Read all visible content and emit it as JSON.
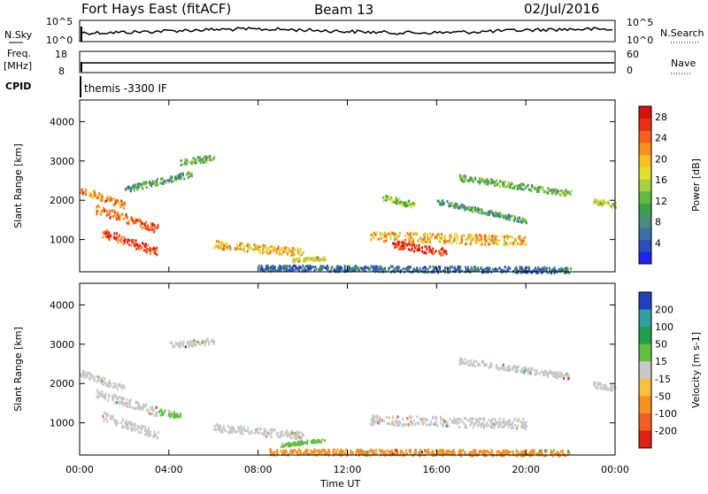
{
  "header": {
    "station": "Fort Hays East (fitACF)",
    "beam": "Beam 13",
    "date": "02/Jul/2016"
  },
  "top_panels": {
    "nsky_label": "N.Sky",
    "nsky_ticks": [
      "10^5",
      "10^0"
    ],
    "nsearch_label": "N.Search",
    "nsearch_ticks": [
      "10^5",
      "10^0"
    ],
    "freq_label": "Freq.",
    "freq_unit": "[MHz]",
    "freq_ticks": [
      "18",
      "8"
    ],
    "nave_label": "Nave",
    "nave_ticks": [
      "60",
      "0"
    ],
    "cpid_label": "CPID",
    "cpid_value": "themis -3300 IF"
  },
  "chart_data": [
    {
      "type": "heatmap",
      "panel": "power",
      "ylabel": "Slant Range [km]",
      "x_ticks": [
        "00:00",
        "04:00",
        "08:00",
        "12:00",
        "16:00",
        "20:00",
        "00:00"
      ],
      "x_range_hours": [
        0,
        24
      ],
      "y_ticks": [
        1000,
        2000,
        3000,
        4000
      ],
      "y_range_km": [
        180,
        4550
      ],
      "colorbar_label": "Power [dB]",
      "colorbar_ticks": [
        4,
        8,
        12,
        16,
        20,
        24,
        28
      ],
      "colorbar_colors": [
        "#1f22f0",
        "#2a4fb8",
        "#3a6fa8",
        "#4a8a80",
        "#3aa04a",
        "#60b840",
        "#a8d040",
        "#e0e030",
        "#f8c020",
        "#f89020",
        "#f86020",
        "#e83018",
        "#d81010"
      ],
      "colorbar_range": [
        0,
        30
      ],
      "scatter_bands": [
        {
          "t": [
            0.0,
            2.0
          ],
          "r": [
            2300,
            1900
          ],
          "width": 180,
          "level": 22
        },
        {
          "t": [
            0.7,
            3.5
          ],
          "r": [
            1800,
            1300
          ],
          "width": 220,
          "level": 24
        },
        {
          "t": [
            1.0,
            3.5
          ],
          "r": [
            1200,
            700
          ],
          "width": 220,
          "level": 26
        },
        {
          "t": [
            2.0,
            5.0
          ],
          "r": [
            2300,
            2700
          ],
          "width": 150,
          "level": 10
        },
        {
          "t": [
            4.5,
            6.0
          ],
          "r": [
            3000,
            3100
          ],
          "width": 150,
          "level": 12
        },
        {
          "t": [
            6.0,
            10.0
          ],
          "r": [
            900,
            700
          ],
          "width": 200,
          "level": 20
        },
        {
          "t": [
            9.5,
            11.0
          ],
          "r": [
            500,
            550
          ],
          "width": 80,
          "level": 18
        },
        {
          "t": [
            13.0,
            20.0
          ],
          "r": [
            1100,
            1000
          ],
          "width": 250,
          "level": 20
        },
        {
          "t": [
            14.0,
            16.5
          ],
          "r": [
            900,
            700
          ],
          "width": 200,
          "level": 26
        },
        {
          "t": [
            13.5,
            15.0
          ],
          "r": [
            2100,
            1900
          ],
          "width": 150,
          "level": 14
        },
        {
          "t": [
            16.0,
            20.0
          ],
          "r": [
            2000,
            1500
          ],
          "width": 120,
          "level": 10
        },
        {
          "t": [
            17.0,
            22.0
          ],
          "r": [
            2600,
            2200
          ],
          "width": 150,
          "level": 12
        },
        {
          "t": [
            23.0,
            24.0
          ],
          "r": [
            2000,
            1900
          ],
          "width": 150,
          "level": 16
        },
        {
          "t": [
            8.0,
            22.0
          ],
          "r": [
            300,
            250
          ],
          "width": 150,
          "level": 6
        }
      ]
    },
    {
      "type": "heatmap",
      "panel": "velocity",
      "ylabel": "Slant Range [km]",
      "xlabel": "Time UT",
      "x_ticks": [
        "00:00",
        "04:00",
        "08:00",
        "12:00",
        "16:00",
        "20:00",
        "00:00"
      ],
      "x_range_hours": [
        0,
        24
      ],
      "y_ticks": [
        1000,
        2000,
        3000,
        4000
      ],
      "y_range_km": [
        180,
        4550
      ],
      "colorbar_label": "Velocity [m s-1]",
      "colorbar_ticks": [
        "200",
        "100",
        "50",
        "15",
        "-15",
        "-50",
        "-100",
        "-200"
      ],
      "colorbar_colors": [
        "#2040c0",
        "#30a0a0",
        "#20a050",
        "#60c040",
        "#c8c8c8",
        "#f8c040",
        "#f89020",
        "#f06020",
        "#e02010"
      ],
      "scatter_bands": [
        {
          "t": [
            0.0,
            2.0
          ],
          "r": [
            2300,
            1900
          ],
          "width": 180,
          "level": "gray"
        },
        {
          "t": [
            0.7,
            3.5
          ],
          "r": [
            1800,
            1300
          ],
          "width": 220,
          "level": "gray"
        },
        {
          "t": [
            1.0,
            3.5
          ],
          "r": [
            1200,
            700
          ],
          "width": 220,
          "level": "gray"
        },
        {
          "t": [
            4.0,
            6.0
          ],
          "r": [
            3000,
            3100
          ],
          "width": 150,
          "level": "gray"
        },
        {
          "t": [
            6.0,
            10.0
          ],
          "r": [
            900,
            700
          ],
          "width": 200,
          "level": "gray"
        },
        {
          "t": [
            13.0,
            20.0
          ],
          "r": [
            1100,
            1000
          ],
          "width": 250,
          "level": "gray"
        },
        {
          "t": [
            17.0,
            22.0
          ],
          "r": [
            2600,
            2200
          ],
          "width": 150,
          "level": "gray"
        },
        {
          "t": [
            23.0,
            24.0
          ],
          "r": [
            2000,
            1900
          ],
          "width": 150,
          "level": "gray"
        },
        {
          "t": [
            3.5,
            4.5
          ],
          "r": [
            1300,
            1200
          ],
          "width": 150,
          "level": "green"
        },
        {
          "t": [
            9.0,
            11.0
          ],
          "r": [
            450,
            600
          ],
          "width": 80,
          "level": "green"
        },
        {
          "t": [
            8.5,
            22.0
          ],
          "r": [
            280,
            260
          ],
          "width": 150,
          "level": "orange"
        }
      ]
    }
  ]
}
